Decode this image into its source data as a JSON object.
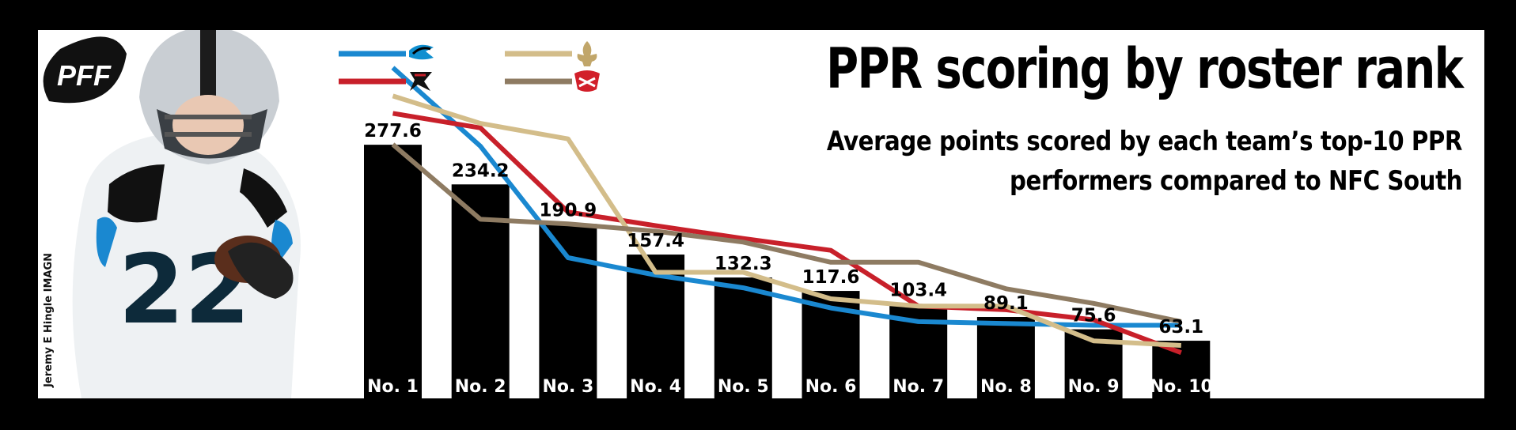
{
  "header": {
    "title": "PPR scoring by roster rank",
    "subtitle": "Average points scored by each team’s top-10 PPR performers compared to NFC South",
    "logo_text": "PFF",
    "photo_credit": "Jeremy E Hingle IMAGN"
  },
  "legend": [
    {
      "icon": "panthers-logo-icon",
      "color": "#1a88d0"
    },
    {
      "icon": "falcons-logo-icon",
      "color": "#c8202a"
    },
    {
      "icon": "saints-logo-icon",
      "color": "#d3bd8a"
    },
    {
      "icon": "buccaneers-logo-icon",
      "color": "#8e7b62"
    }
  ],
  "chart_data": {
    "type": "bar",
    "categories": [
      "No. 1",
      "No. 2",
      "No. 3",
      "No. 4",
      "No. 5",
      "No. 6",
      "No. 7",
      "No. 8",
      "No. 9",
      "No. 10"
    ],
    "values": [
      277.6,
      234.2,
      190.9,
      157.4,
      132.3,
      117.6,
      103.4,
      89.1,
      75.6,
      63.1
    ],
    "value_labels": [
      "277.6",
      "234.2",
      "190.9",
      "157.4",
      "132.3",
      "117.6",
      "103.4",
      "89.1",
      "75.6",
      "63.1"
    ],
    "bar_color": "#000000",
    "ylim": [
      0,
      372
    ],
    "series": [
      {
        "color": "#1a88d0",
        "values": [
          362,
          276,
          154,
          135,
          121,
          99,
          84,
          82,
          80,
          80
        ]
      },
      {
        "color": "#c8202a",
        "values": [
          312,
          296,
          204,
          189,
          175,
          162,
          101,
          97,
          86,
          50
        ]
      },
      {
        "color": "#d3bd8a",
        "values": [
          331,
          301,
          284,
          138,
          138,
          109,
          101,
          101,
          63,
          58
        ]
      },
      {
        "color": "#8e7b62",
        "values": [
          278,
          196,
          191,
          183,
          171,
          149,
          149,
          120,
          104,
          84
        ]
      }
    ]
  }
}
